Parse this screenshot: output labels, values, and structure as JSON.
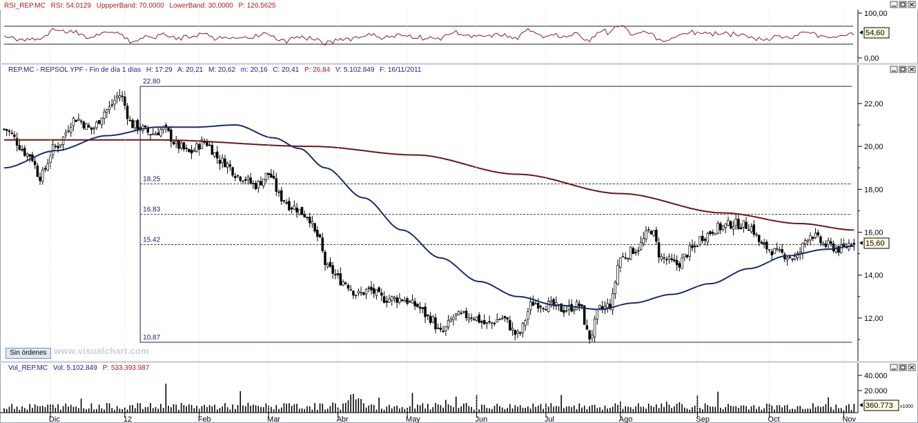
{
  "rsi_panel": {
    "header": {
      "name": "RSI_REP.MC",
      "rsi": "RSI: 54,0129",
      "upper": "UppperBand: 70,0000",
      "lower": "LowerBand: 30,0000",
      "p": "P: 126,5625"
    },
    "value_label": "54,60",
    "axis_labels": [
      "100,00",
      "0,00"
    ]
  },
  "price_panel": {
    "header": {
      "name": "REP.MC - REPSOL YPF - Fin de día 1 días",
      "h": "H: 17:29",
      "a": "A: 20,21",
      "m": "M: 20,62",
      "mm": "m: 20,16",
      "c": "C: 20,41",
      "p": "P: 26,84",
      "v": "V: 5.102.849",
      "f": "F: 16/11/2011"
    },
    "value_label": "15,60",
    "sin_ordenes": "Sin órdenes",
    "watermark": "www.visualchart.com"
  },
  "volume_panel": {
    "header": {
      "name": "Vol_REP.MC",
      "vol": "Vol: 5.102.849",
      "p": "P: 533.393.987"
    },
    "value_label": "360.773",
    "unit_label": "x1000",
    "axis_labels": [
      "40.000",
      "20.000"
    ]
  },
  "chart_data": {
    "type": "candlestick",
    "x_labels": [
      "Dic",
      "12",
      "Feb",
      "Mar",
      "Abr",
      "May",
      "Jun",
      "Jul",
      "Ago",
      "Sep",
      "Oct",
      "Nov"
    ],
    "y_ticks": [
      "12,00",
      "14,00",
      "16,00",
      "18,00",
      "20,00",
      "22,00"
    ],
    "ylim": [
      10,
      23.8
    ],
    "fibonacci_levels": [
      {
        "label": "22.80",
        "value": 22.8
      },
      {
        "label": "18.25",
        "value": 18.25
      },
      {
        "label": "16.83",
        "value": 16.83
      },
      {
        "label": "15.42",
        "value": 15.42
      },
      {
        "label": "10.87",
        "value": 10.87
      }
    ],
    "close_key_points": [
      [
        0,
        20.8
      ],
      [
        10,
        19.6
      ],
      [
        14,
        18.6
      ],
      [
        20,
        20.0
      ],
      [
        28,
        21.3
      ],
      [
        34,
        20.8
      ],
      [
        40,
        21.7
      ],
      [
        45,
        22.4
      ],
      [
        50,
        21.0
      ],
      [
        58,
        20.6
      ],
      [
        62,
        20.8
      ],
      [
        68,
        20.0
      ],
      [
        72,
        19.7
      ],
      [
        78,
        20.2
      ],
      [
        85,
        19.3
      ],
      [
        92,
        18.6
      ],
      [
        98,
        18.2
      ],
      [
        103,
        18.7
      ],
      [
        108,
        17.6
      ],
      [
        112,
        17.2
      ],
      [
        118,
        16.8
      ],
      [
        122,
        15.8
      ],
      [
        126,
        14.3
      ],
      [
        132,
        13.7
      ],
      [
        138,
        13.1
      ],
      [
        142,
        13.3
      ],
      [
        148,
        12.9
      ],
      [
        155,
        12.9
      ],
      [
        160,
        12.6
      ],
      [
        166,
        12.0
      ],
      [
        170,
        11.3
      ],
      [
        176,
        12.1
      ],
      [
        182,
        12.1
      ],
      [
        188,
        11.7
      ],
      [
        194,
        12.0
      ],
      [
        200,
        11.2
      ],
      [
        206,
        12.7
      ],
      [
        212,
        12.6
      ],
      [
        218,
        12.4
      ],
      [
        224,
        12.6
      ],
      [
        228,
        11.1
      ],
      [
        232,
        12.4
      ],
      [
        236,
        12.6
      ],
      [
        240,
        14.8
      ],
      [
        246,
        15.2
      ],
      [
        252,
        16.1
      ],
      [
        256,
        14.8
      ],
      [
        262,
        14.5
      ],
      [
        268,
        15.2
      ],
      [
        272,
        15.8
      ],
      [
        278,
        16.2
      ],
      [
        284,
        16.4
      ],
      [
        290,
        16.3
      ],
      [
        296,
        15.3
      ],
      [
        302,
        15.0
      ],
      [
        308,
        14.8
      ],
      [
        314,
        15.9
      ],
      [
        320,
        15.4
      ],
      [
        326,
        15.2
      ],
      [
        331,
        15.6
      ]
    ],
    "ma_short_key_points": [
      [
        0,
        19.0
      ],
      [
        20,
        19.8
      ],
      [
        40,
        20.5
      ],
      [
        60,
        20.9
      ],
      [
        75,
        20.9
      ],
      [
        90,
        21.0
      ],
      [
        105,
        20.4
      ],
      [
        115,
        19.9
      ],
      [
        125,
        19.0
      ],
      [
        140,
        17.6
      ],
      [
        155,
        16.1
      ],
      [
        170,
        14.8
      ],
      [
        185,
        13.7
      ],
      [
        200,
        13.0
      ],
      [
        215,
        12.6
      ],
      [
        232,
        12.4
      ],
      [
        245,
        12.7
      ],
      [
        260,
        13.1
      ],
      [
        275,
        13.6
      ],
      [
        290,
        14.3
      ],
      [
        305,
        14.9
      ],
      [
        320,
        15.2
      ],
      [
        331,
        15.35
      ]
    ],
    "ma_long_key_points": [
      [
        0,
        20.3
      ],
      [
        60,
        20.3
      ],
      [
        120,
        20.0
      ],
      [
        160,
        19.6
      ],
      [
        200,
        18.7
      ],
      [
        240,
        17.8
      ],
      [
        280,
        16.9
      ],
      [
        310,
        16.4
      ],
      [
        331,
        16.1
      ]
    ]
  },
  "colors": {
    "candle_up": "#ffffff",
    "candle_down": "#000000",
    "ma_short": "#1b2a6b",
    "ma_long": "#6b1616",
    "rsi_line": "#8b1a1a",
    "fib_line": "#1a1a6e",
    "header_red": "#b21a1a",
    "header_blue": "#1a1a8e"
  }
}
